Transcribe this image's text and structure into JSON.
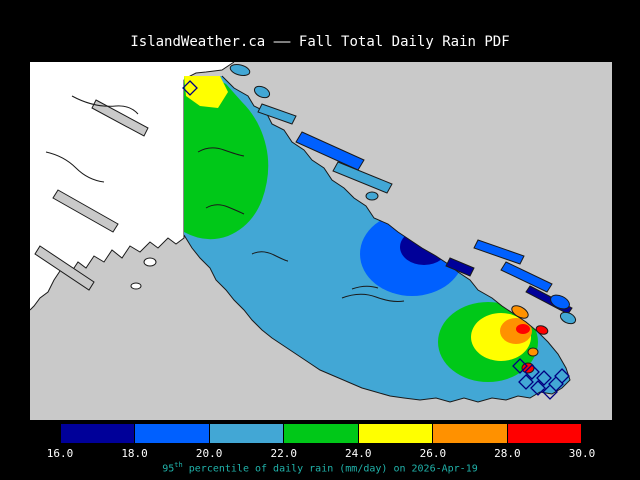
{
  "title": "IslandWeather.ca –– Fall Total Daily Rain PDF",
  "caption": {
    "base": "95",
    "sup": "th",
    "rest": " percentile of daily rain (mm/day) on 2026-Apr-19",
    "color": "#20b2aa"
  },
  "colorbar": {
    "tick_labels": [
      "16.0",
      "18.0",
      "20.0",
      "22.0",
      "24.0",
      "26.0",
      "28.0",
      "30.0"
    ],
    "segments": [
      {
        "from": "16.0",
        "to": "18.0",
        "color": "#000099"
      },
      {
        "from": "18.0",
        "to": "20.0",
        "color": "#0060ff"
      },
      {
        "from": "20.0",
        "to": "22.0",
        "color": "#42a7d5"
      },
      {
        "from": "22.0",
        "to": "24.0",
        "color": "#00c818"
      },
      {
        "from": "24.0",
        "to": "26.0",
        "color": "#ffff00"
      },
      {
        "from": "26.0",
        "to": "28.0",
        "color": "#ff9100"
      },
      {
        "from": "28.0",
        "to": "30.0",
        "color": "#ff0000"
      }
    ]
  },
  "map": {
    "sea_color": "#c9c9c9",
    "land_color": "#ffffff",
    "coastline_color": "#1a1a1a",
    "hatch_color": "#000080"
  }
}
